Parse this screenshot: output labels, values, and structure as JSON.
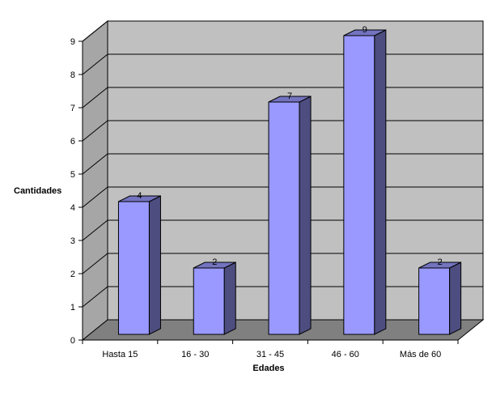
{
  "chart_data": {
    "type": "bar",
    "categories": [
      "Hasta 15",
      "16 - 30",
      "31 - 45",
      "46 - 60",
      "Más de 60"
    ],
    "values": [
      4,
      2,
      7,
      9,
      2
    ],
    "data_labels": [
      "4",
      "2",
      "7",
      "9",
      "2"
    ],
    "xlabel": "Edades",
    "ylabel": "Cantidades",
    "ylim": [
      0,
      9
    ],
    "yticks": [
      "0",
      "1",
      "2",
      "3",
      "4",
      "5",
      "6",
      "7",
      "8",
      "9"
    ],
    "grid": true,
    "style": "3d-column",
    "colors": {
      "bar_front": "#9999ff",
      "bar_side": "#4d4d80",
      "bar_top": "#7373bf",
      "wall": "#c0c0c0",
      "side_wall": "#a6a6a6",
      "floor": "#808080"
    }
  }
}
